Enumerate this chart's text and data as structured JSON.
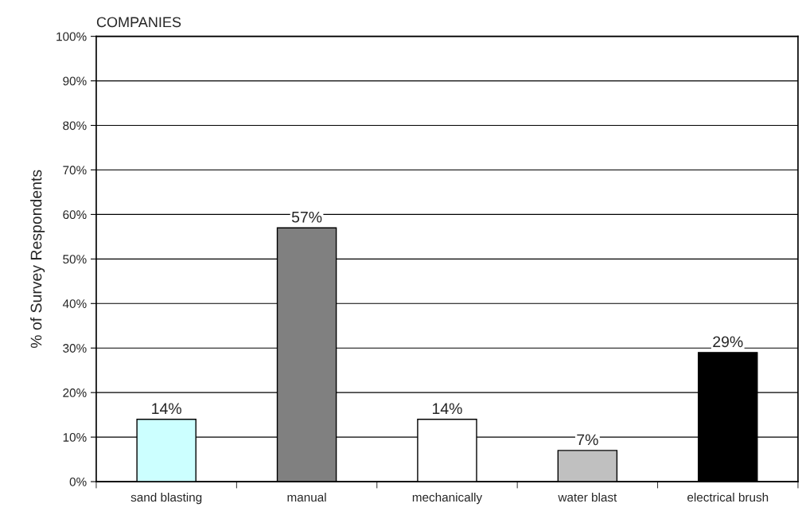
{
  "chart_data": {
    "type": "bar",
    "title": "COMPANIES",
    "ylabel": "% of Survey Respondents",
    "categories": [
      "sand blasting",
      "manual",
      "mechanically",
      "water blast",
      "electrical brush"
    ],
    "values": [
      14,
      57,
      14,
      7,
      29
    ],
    "colors": [
      "#ccffff",
      "#808080",
      "#ffffff",
      "#c0c0c0",
      "#000000"
    ],
    "value_labels": [
      "14%",
      "57%",
      "14%",
      "7%",
      "29%"
    ],
    "ylim": [
      0,
      100
    ],
    "yticks": [
      {
        "value": 0,
        "label": "0%"
      },
      {
        "value": 10,
        "label": "10%"
      },
      {
        "value": 20,
        "label": "20%"
      },
      {
        "value": 30,
        "label": "30%"
      },
      {
        "value": 40,
        "label": "40%"
      },
      {
        "value": 50,
        "label": "50%"
      },
      {
        "value": 60,
        "label": "60%"
      },
      {
        "value": 70,
        "label": "70%"
      },
      {
        "value": 80,
        "label": "80%"
      },
      {
        "value": 90,
        "label": "90%"
      },
      {
        "value": 100,
        "label": "100%"
      }
    ],
    "grid": "y"
  }
}
